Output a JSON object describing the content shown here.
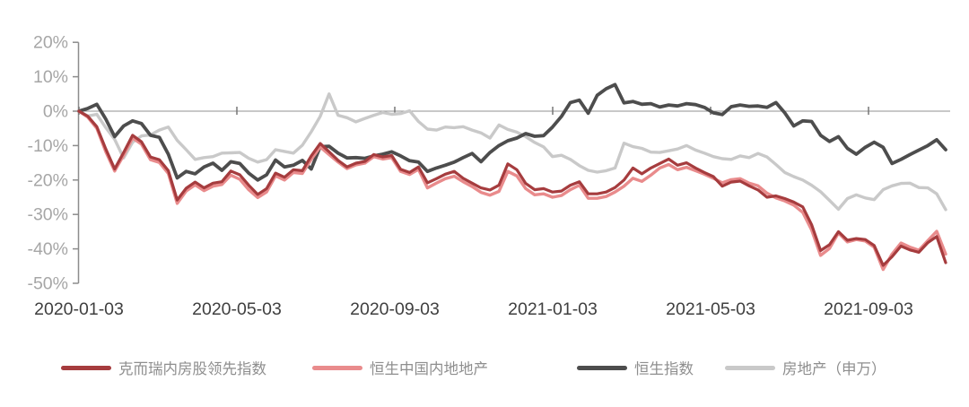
{
  "chart_data": {
    "type": "line",
    "title": "",
    "x_axis": {
      "start": "2020-01-03",
      "end": "2021-11-05",
      "frequency": "weekly",
      "tick_labels": [
        "2020-01-03",
        "2020-05-03",
        "2020-09-03",
        "2021-01-03",
        "2021-05-03",
        "2021-09-03"
      ]
    },
    "y_axis": {
      "unit": "%",
      "min": -50,
      "max": 20,
      "step": 10,
      "tick_labels": [
        "20%",
        "10%",
        "0%",
        "-10%",
        "-20%",
        "-30%",
        "-40%",
        "-50%"
      ]
    },
    "grid": {
      "zero_line_only": true,
      "gridlines": false
    },
    "legend_position": "bottom",
    "series": [
      {
        "name": "克而瑞内房股领先指数",
        "color": "#a63c3e",
        "stroke_width": 3.2,
        "values": [
          0,
          -1.5,
          -4.5,
          -11,
          -16.8,
          -12,
          -7,
          -8.9,
          -13.3,
          -14.1,
          -17.3,
          -25.8,
          -22.4,
          -20.6,
          -22.3,
          -20.9,
          -20.5,
          -17.4,
          -18.5,
          -21.5,
          -24.2,
          -22.5,
          -18,
          -19.2,
          -17,
          -17.3,
          -13,
          -9.4,
          -11.8,
          -14.3,
          -16.2,
          -15.1,
          -14.6,
          -12.6,
          -13.3,
          -12.9,
          -16.9,
          -17.8,
          -16.2,
          -20.8,
          -19.6,
          -18.3,
          -17.5,
          -19.5,
          -20.9,
          -22.3,
          -22.9,
          -21.5,
          -15.3,
          -17,
          -21,
          -22.8,
          -22.5,
          -23.5,
          -23.2,
          -21.5,
          -20.5,
          -24,
          -24,
          -23.5,
          -22.2,
          -20,
          -16.5,
          -18.2,
          -16.5,
          -15.2,
          -13.9,
          -15.7,
          -15,
          -16.5,
          -17.8,
          -19,
          -21.8,
          -20.6,
          -20.3,
          -21.7,
          -22.9,
          -25,
          -24.6,
          -25.4,
          -26.4,
          -27.8,
          -33,
          -40.5,
          -38.8,
          -35,
          -37.5,
          -37,
          -37.3,
          -39,
          -44.8,
          -42.3,
          -39.2,
          -40.3,
          -41,
          -38.2,
          -36.4,
          -44
        ]
      },
      {
        "name": "恒生中国内地地产",
        "color": "#e98b8c",
        "stroke_width": 3.4,
        "values": [
          0,
          -1.8,
          -5,
          -11.8,
          -17.4,
          -12.8,
          -7.8,
          -9.6,
          -14.1,
          -14.9,
          -18.1,
          -26.8,
          -23.2,
          -21.4,
          -23.1,
          -21.8,
          -21.3,
          -18.6,
          -19.8,
          -22.8,
          -25.1,
          -23.5,
          -18.8,
          -20,
          -17.8,
          -18.1,
          -14,
          -10.4,
          -12.6,
          -14.8,
          -16.7,
          -15.6,
          -15.1,
          -13.2,
          -13.9,
          -13.5,
          -17.5,
          -18.4,
          -16.9,
          -22.3,
          -20.9,
          -19.6,
          -18.9,
          -20.5,
          -21.9,
          -23.6,
          -24.4,
          -23.3,
          -17.5,
          -18.8,
          -22.5,
          -24.3,
          -24,
          -25,
          -24.5,
          -22.8,
          -21.5,
          -25.3,
          -25.3,
          -24.8,
          -23.5,
          -21.8,
          -19.5,
          -20.4,
          -18.6,
          -16.5,
          -15.5,
          -17,
          -16.3,
          -17.3,
          -18.3,
          -19.5,
          -20.8,
          -19.9,
          -19.6,
          -20.9,
          -21.7,
          -23.8,
          -25.2,
          -26.1,
          -27.3,
          -29.4,
          -34.5,
          -41.9,
          -39.9,
          -35.4,
          -38,
          -37.3,
          -37.7,
          -39.5,
          -46,
          -41.5,
          -38.3,
          -39.5,
          -40.4,
          -37.6,
          -34.9,
          -41.5
        ]
      },
      {
        "name": "恒生指数",
        "color": "#4d4d4d",
        "stroke_width": 3.8,
        "values": [
          0,
          0.8,
          2,
          -2.3,
          -7.4,
          -4.3,
          -2.8,
          -3.6,
          -7,
          -7.6,
          -12.5,
          -19.4,
          -17.5,
          -18.2,
          -16.2,
          -15.1,
          -17.2,
          -14.7,
          -15.2,
          -18,
          -20,
          -18.5,
          -14.2,
          -16.2,
          -15.7,
          -14.3,
          -16.8,
          -10.3,
          -10.2,
          -12.2,
          -13.6,
          -13.5,
          -13.7,
          -13,
          -12.5,
          -11.8,
          -13,
          -14.4,
          -14.8,
          -17.5,
          -16.5,
          -15.7,
          -14.8,
          -13.5,
          -12.3,
          -14.7,
          -12,
          -10,
          -8.6,
          -7.8,
          -6.5,
          -7.3,
          -7.1,
          -4.6,
          -1.5,
          2.5,
          3.2,
          -0.6,
          4.6,
          6.5,
          7.7,
          2.4,
          2.8,
          2,
          2.2,
          1.2,
          1.8,
          1.5,
          2.2,
          1.9,
          1.1,
          -0.5,
          -1,
          1.3,
          1.8,
          1.4,
          1.5,
          1.1,
          2.5,
          -0.5,
          -4.3,
          -2.8,
          -3,
          -7,
          -8.8,
          -7.4,
          -10.8,
          -12.5,
          -10.5,
          -9,
          -10.5,
          -15.2,
          -14,
          -12.6,
          -11.3,
          -10,
          -8.3,
          -11.2
        ]
      },
      {
        "name": "房地产（申万）",
        "color": "#c9c9c9",
        "stroke_width": 3.4,
        "values": [
          0,
          -1.4,
          -0.9,
          -4.8,
          -8.2,
          -13.6,
          -9,
          -7.2,
          -6.9,
          -5.5,
          -4.6,
          -8.5,
          -11.2,
          -14,
          -13.5,
          -13.2,
          -12.2,
          -12.1,
          -12,
          -13.7,
          -14.8,
          -14.1,
          -11.2,
          -11.7,
          -12.2,
          -9.9,
          -6,
          -1.5,
          5,
          -1.2,
          -1.9,
          -3.1,
          -2.1,
          -1.2,
          -0.4,
          -0.9,
          -0.7,
          0.1,
          -3,
          -5.2,
          -5.5,
          -4.6,
          -4.8,
          -4.5,
          -5.5,
          -6.3,
          -7.8,
          -4,
          -5.3,
          -6.1,
          -7.4,
          -9.1,
          -10.4,
          -13.2,
          -12.8,
          -14,
          -15.8,
          -17.2,
          -17.7,
          -17.3,
          -16.5,
          -9.3,
          -10.3,
          -10.8,
          -11.9,
          -12,
          -11.5,
          -11,
          -10,
          -11.3,
          -12.2,
          -13.2,
          -13.8,
          -14,
          -13,
          -13.5,
          -12.3,
          -13.3,
          -15.5,
          -17.8,
          -19,
          -20,
          -21.5,
          -23.4,
          -25.9,
          -28.5,
          -25.4,
          -24.3,
          -25.2,
          -25.7,
          -22.8,
          -21.7,
          -21,
          -20.9,
          -22.2,
          -22.3,
          -24,
          -28.6
        ]
      }
    ],
    "style": {
      "axis_color": "#8c8c8c",
      "zero_line_color": "#909090",
      "y_label_color": "#a6a6a6",
      "x_label_color": "#3f3f3f",
      "legend_text_color": "#8e8e8e",
      "background": "#ffffff"
    }
  }
}
